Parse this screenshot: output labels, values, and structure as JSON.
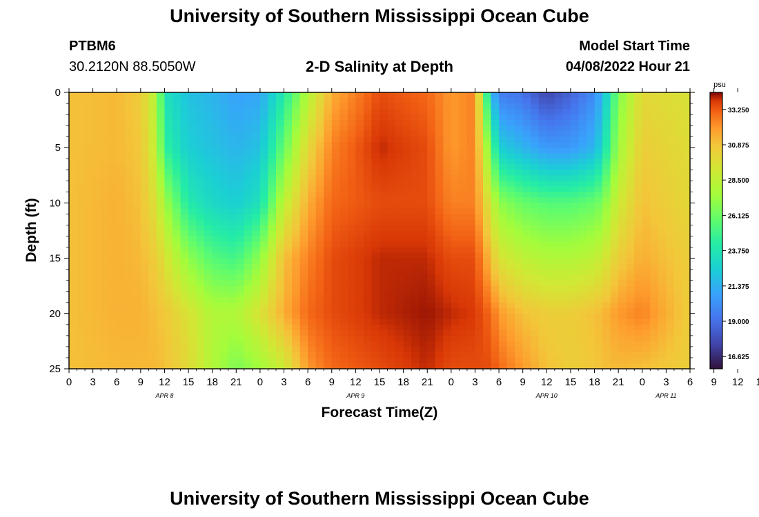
{
  "header": {
    "title": "University of Southern Mississippi Ocean Cube",
    "footer_title": "University of Southern Mississippi Ocean Cube",
    "station": "PTBM6",
    "coords": "30.2120N  88.5050W",
    "plot_title": "2-D Salinity at Depth",
    "model_start_label": "Model Start Time",
    "model_start_value": "04/08/2022 Hour 21"
  },
  "chart_data": {
    "type": "heatmap",
    "title": "2-D Salinity at Depth",
    "xlabel": "Forecast Time(Z)",
    "ylabel": "Depth (ft)",
    "x_tick_labels": [
      "0",
      "3",
      "6",
      "9",
      "12",
      "15",
      "18",
      "21",
      "0",
      "3",
      "6",
      "9",
      "12",
      "15",
      "18",
      "21",
      "0",
      "3",
      "6",
      "9",
      "12",
      "15",
      "18",
      "21",
      "0",
      "3",
      "6",
      "9",
      "12",
      "15",
      "18",
      "21",
      "0",
      "3",
      "6"
    ],
    "x_range_hours": [
      0,
      78
    ],
    "day_labels": [
      {
        "label": "APR 8",
        "hour": 12
      },
      {
        "label": "APR 9",
        "hour": 36
      },
      {
        "label": "APR 10",
        "hour": 60
      },
      {
        "label": "APR 11",
        "hour": 75
      }
    ],
    "y_ticks": [
      0,
      5,
      10,
      15,
      20,
      25
    ],
    "y_tick_labels": [
      "0",
      "5",
      "10",
      "15",
      "20",
      "25"
    ],
    "ylim": [
      0,
      25
    ],
    "colorbar": {
      "unit": "psu",
      "range": [
        15.8,
        34.4
      ],
      "tick_values": [
        33.25,
        30.875,
        28.5,
        26.125,
        23.75,
        21.375,
        19.0,
        16.625
      ],
      "tick_labels": [
        "33.250",
        "30.875",
        "28.500",
        "26.125",
        "23.750",
        "21.375",
        "19.000",
        "16.625"
      ]
    },
    "salinity_profiles_psu": {
      "depths_ft": [
        0,
        5,
        10,
        15,
        20,
        25
      ],
      "profiles": [
        {
          "hour": 0,
          "values": [
            31.0,
            31.0,
            31.0,
            31.0,
            31.0,
            31.0
          ]
        },
        {
          "hour": 6,
          "values": [
            31.2,
            31.2,
            31.4,
            31.4,
            31.4,
            31.2
          ]
        },
        {
          "hour": 9,
          "values": [
            30.6,
            30.8,
            31.0,
            31.2,
            31.4,
            31.2
          ]
        },
        {
          "hour": 11,
          "values": [
            28.0,
            28.5,
            29.5,
            30.5,
            31.0,
            31.2
          ]
        },
        {
          "hour": 12,
          "values": [
            23.5,
            24.5,
            27.5,
            29.5,
            30.8,
            31.0
          ]
        },
        {
          "hour": 15,
          "values": [
            22.0,
            22.5,
            24.0,
            27.0,
            29.5,
            30.0
          ]
        },
        {
          "hour": 18,
          "values": [
            21.5,
            22.0,
            23.0,
            25.5,
            28.0,
            28.0
          ]
        },
        {
          "hour": 21,
          "values": [
            20.8,
            21.5,
            22.5,
            25.0,
            28.0,
            26.5
          ]
        },
        {
          "hour": 24,
          "values": [
            21.0,
            22.0,
            23.5,
            27.0,
            29.5,
            27.5
          ]
        },
        {
          "hour": 27,
          "values": [
            24.0,
            26.0,
            28.5,
            31.0,
            31.5,
            29.0
          ]
        },
        {
          "hour": 30,
          "values": [
            28.0,
            30.0,
            31.5,
            32.5,
            33.0,
            32.0
          ]
        },
        {
          "hour": 33,
          "values": [
            31.5,
            32.5,
            33.0,
            33.5,
            33.5,
            33.0
          ]
        },
        {
          "hour": 39,
          "values": [
            33.5,
            34.0,
            33.5,
            34.0,
            34.0,
            33.5
          ]
        },
        {
          "hour": 45,
          "values": [
            33.0,
            33.5,
            33.5,
            34.0,
            34.2,
            34.0
          ]
        },
        {
          "hour": 48,
          "values": [
            32.0,
            32.0,
            32.5,
            33.5,
            34.0,
            33.5
          ]
        },
        {
          "hour": 51,
          "values": [
            32.5,
            32.5,
            32.5,
            33.5,
            33.8,
            33.5
          ]
        },
        {
          "hour": 53,
          "values": [
            22.0,
            26.0,
            29.0,
            31.0,
            33.0,
            33.5
          ]
        },
        {
          "hour": 54,
          "values": [
            19.5,
            22.5,
            27.0,
            29.5,
            32.0,
            33.0
          ]
        },
        {
          "hour": 57,
          "values": [
            19.0,
            21.5,
            26.0,
            28.5,
            31.0,
            32.0
          ]
        },
        {
          "hour": 60,
          "values": [
            17.5,
            20.5,
            25.5,
            28.0,
            30.5,
            31.0
          ]
        },
        {
          "hour": 63,
          "values": [
            18.5,
            20.5,
            25.5,
            28.0,
            30.5,
            30.5
          ]
        },
        {
          "hour": 66,
          "values": [
            20.0,
            21.5,
            26.0,
            28.5,
            31.0,
            30.8
          ]
        },
        {
          "hour": 67,
          "values": [
            21.5,
            23.0,
            26.5,
            29.0,
            31.2,
            31.0
          ]
        },
        {
          "hour": 69,
          "values": [
            26.5,
            27.5,
            29.0,
            30.5,
            32.0,
            31.2
          ]
        },
        {
          "hour": 72,
          "values": [
            30.0,
            30.5,
            31.0,
            31.5,
            32.5,
            31.0
          ]
        },
        {
          "hour": 78,
          "values": [
            29.5,
            29.8,
            30.0,
            30.5,
            30.5,
            30.5
          ]
        }
      ]
    }
  }
}
